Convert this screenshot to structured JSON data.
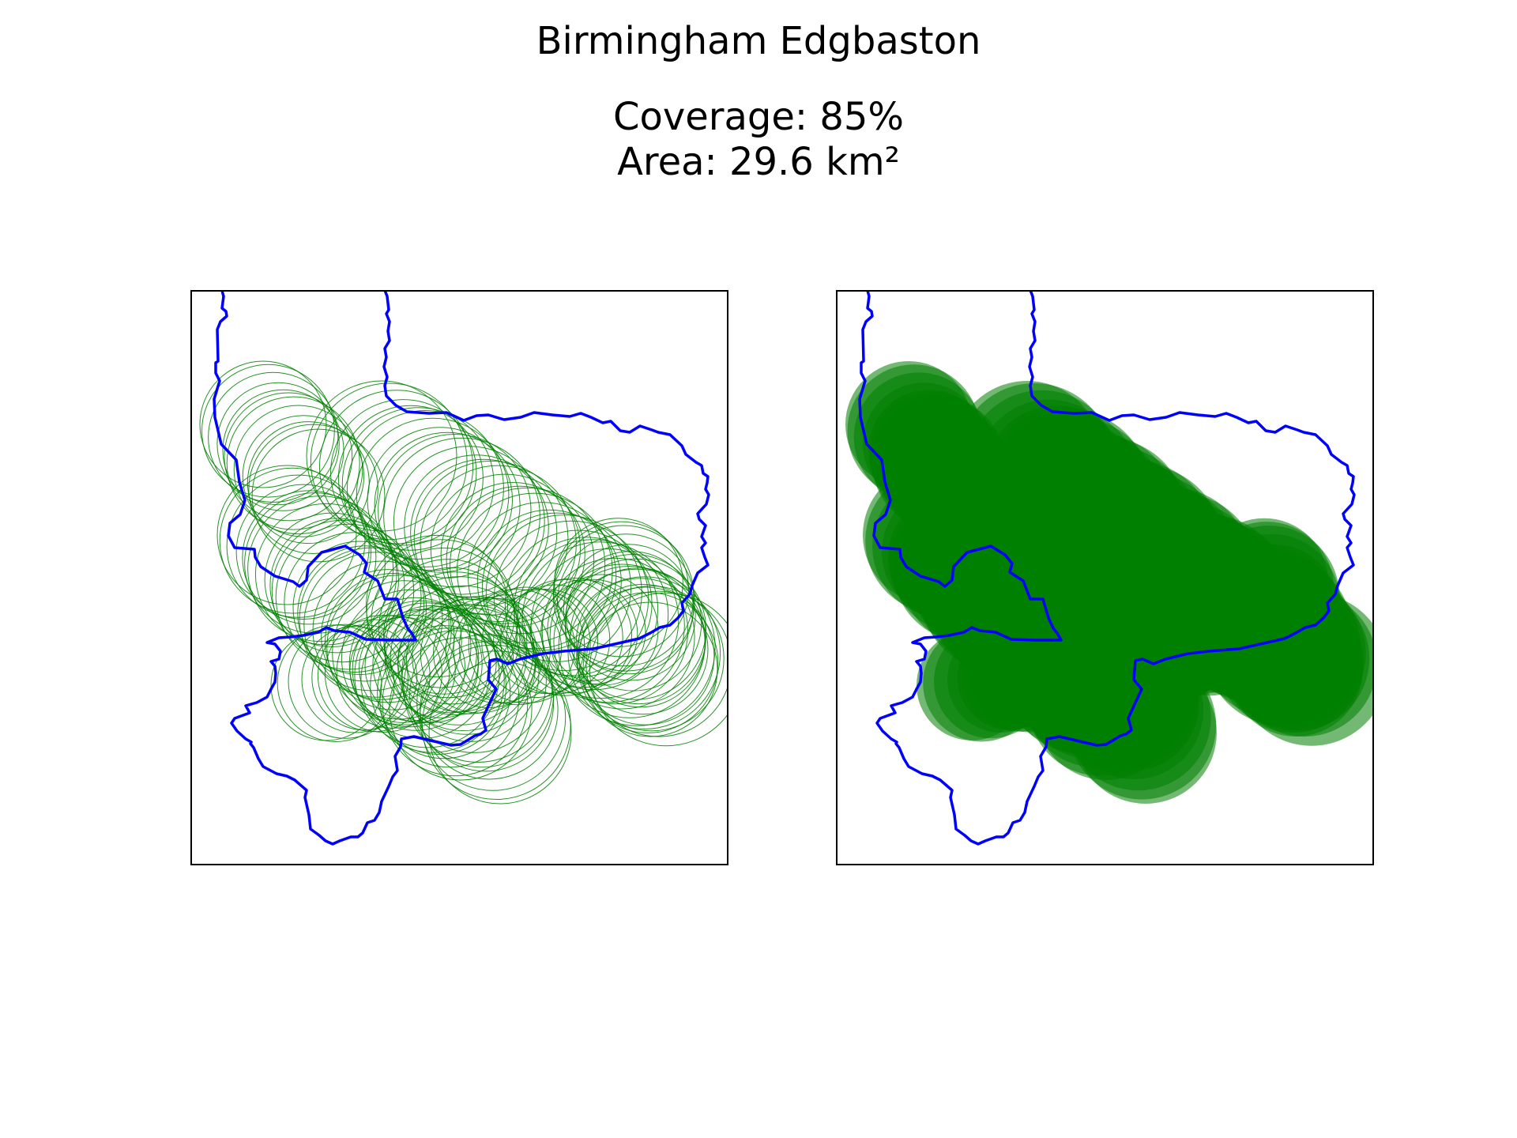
{
  "figure": {
    "title": "Birmingham Edgbaston",
    "coverage_label": "Coverage: 85%",
    "area_label": "Area: 29.6 km²"
  },
  "map": {
    "coverage_percent": 85,
    "area_km2": 29.6,
    "colors": {
      "boundary": "#0000ff",
      "circles": "#008000",
      "frame": "#000000",
      "background": "#ffffff"
    },
    "panels": [
      {
        "id": "left",
        "style": "outline-circles"
      },
      {
        "id": "right",
        "style": "filled-circles"
      }
    ]
  }
}
